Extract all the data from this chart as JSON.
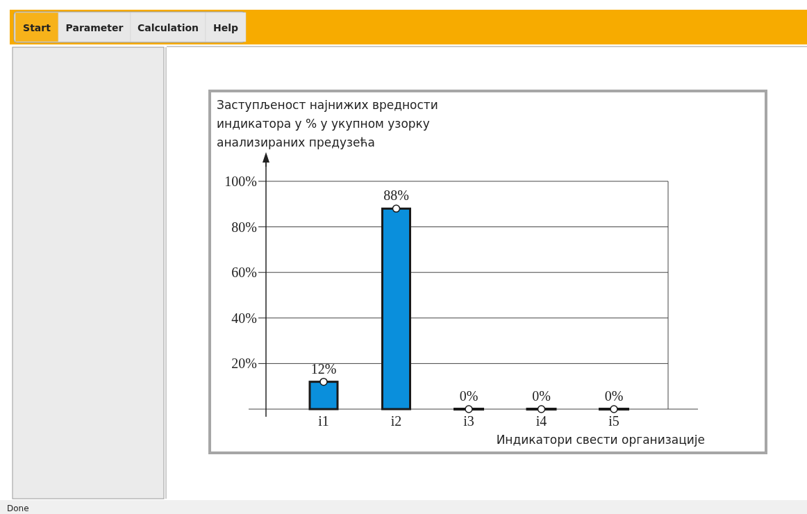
{
  "chart_data": {
    "type": "bar",
    "title": "Заступљеност најнижих вредности\nиндикатора у % у укупном узорку\nанализираних предузећа",
    "xlabel": "Индикатори свести организације",
    "categories": [
      "i1",
      "i2",
      "i3",
      "i4",
      "i5"
    ],
    "series": [
      {
        "color": "#0a8fdc",
        "values": [
          12,
          88,
          0,
          0,
          0
        ],
        "value_labels": [
          "12%",
          "88%",
          "0%",
          "0%",
          "0%"
        ]
      },
      {
        "type": "scatter",
        "color": "#ffffff",
        "marker": "circle",
        "x": [
          "i1",
          "i2",
          "i3",
          "i4",
          "i5"
        ],
        "values": [
          12,
          88,
          0,
          0,
          0
        ]
      }
    ],
    "ylim": [
      0,
      100
    ],
    "yticks": [
      {
        "value": 20,
        "label": "20%"
      },
      {
        "value": 40,
        "label": "40%"
      },
      {
        "value": 60,
        "label": "60%"
      },
      {
        "value": 80,
        "label": "80%"
      },
      {
        "value": 100,
        "label": "100%"
      }
    ],
    "grid": "y",
    "annotations": [
      "Start",
      "Parameter",
      "Calculation",
      "Help",
      "Done"
    ]
  }
}
